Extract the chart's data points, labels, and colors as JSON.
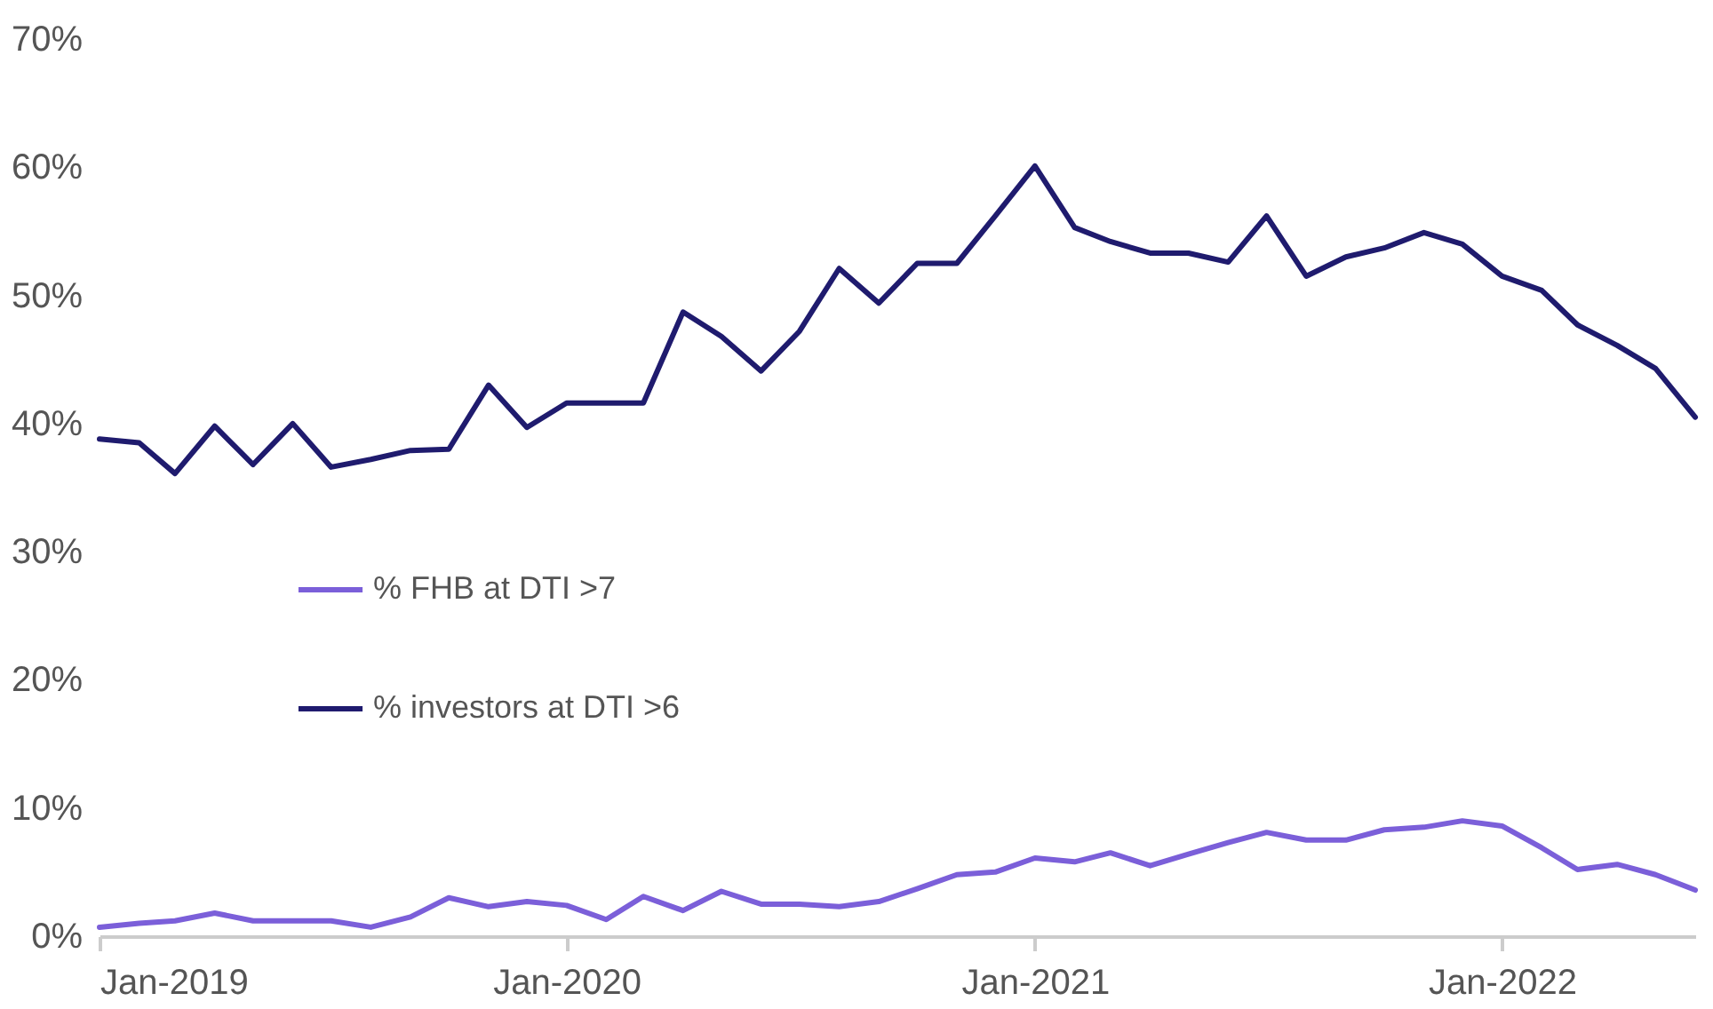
{
  "chart_data": {
    "type": "line",
    "x": [
      "2019-01",
      "2019-02",
      "2019-03",
      "2019-04",
      "2019-05",
      "2019-06",
      "2019-07",
      "2019-08",
      "2019-09",
      "2019-10",
      "2019-11",
      "2019-12",
      "2020-01",
      "2020-02",
      "2020-03",
      "2020-04",
      "2020-05",
      "2020-06",
      "2020-07",
      "2020-08",
      "2020-09",
      "2020-10",
      "2020-11",
      "2020-12",
      "2021-01",
      "2021-02",
      "2021-03",
      "2021-04",
      "2021-05",
      "2021-06",
      "2021-07",
      "2021-08",
      "2021-09",
      "2021-10",
      "2021-11",
      "2021-12",
      "2022-01",
      "2022-02",
      "2022-03",
      "2022-04",
      "2022-05",
      "2022-06"
    ],
    "series": [
      {
        "name": "% FHB at DTI >7",
        "color": "#7b5fd9",
        "values": [
          0.7,
          1.0,
          1.2,
          1.8,
          1.2,
          1.2,
          1.2,
          0.7,
          1.5,
          3.0,
          2.3,
          2.7,
          2.4,
          1.3,
          3.1,
          2.0,
          3.5,
          2.5,
          2.5,
          2.3,
          2.7,
          3.7,
          4.8,
          5.0,
          6.1,
          5.8,
          6.5,
          5.5,
          6.4,
          7.3,
          8.1,
          7.5,
          7.5,
          8.3,
          8.5,
          9.0,
          8.6,
          6.9,
          5.2,
          5.6,
          4.8,
          3.6
        ]
      },
      {
        "name": "% investors at DTI >6",
        "color": "#1f1b6e",
        "values": [
          38.8,
          38.5,
          36.1,
          39.8,
          36.8,
          40.0,
          36.6,
          37.2,
          37.9,
          38.0,
          43.0,
          39.7,
          41.6,
          41.6,
          41.6,
          48.7,
          46.8,
          44.1,
          47.2,
          52.1,
          49.4,
          52.5,
          52.5,
          56.2,
          60.1,
          55.3,
          54.2,
          53.3,
          53.3,
          52.6,
          56.2,
          51.5,
          53.0,
          53.7,
          54.9,
          54.0,
          51.5,
          50.4,
          47.7,
          46.1,
          44.3,
          40.5
        ]
      }
    ],
    "xlim": [
      "2019-01",
      "2022-06"
    ],
    "xticks": [
      {
        "value": "2019-01",
        "label": "Jan-2019"
      },
      {
        "value": "2020-01",
        "label": "Jan-2020"
      },
      {
        "value": "2021-01",
        "label": "Jan-2021"
      },
      {
        "value": "2022-01",
        "label": "Jan-2022"
      }
    ],
    "ylim": [
      0,
      70
    ],
    "yticks": [
      {
        "value": 0,
        "label": "0%"
      },
      {
        "value": 10,
        "label": "10%"
      },
      {
        "value": 20,
        "label": "20%"
      },
      {
        "value": 30,
        "label": "30%"
      },
      {
        "value": 40,
        "label": "40%"
      },
      {
        "value": 50,
        "label": "50%"
      },
      {
        "value": 60,
        "label": "60%"
      },
      {
        "value": 70,
        "label": "70%"
      }
    ],
    "grid": false,
    "legend": "left",
    "marker": "none",
    "line_style": "solid"
  }
}
